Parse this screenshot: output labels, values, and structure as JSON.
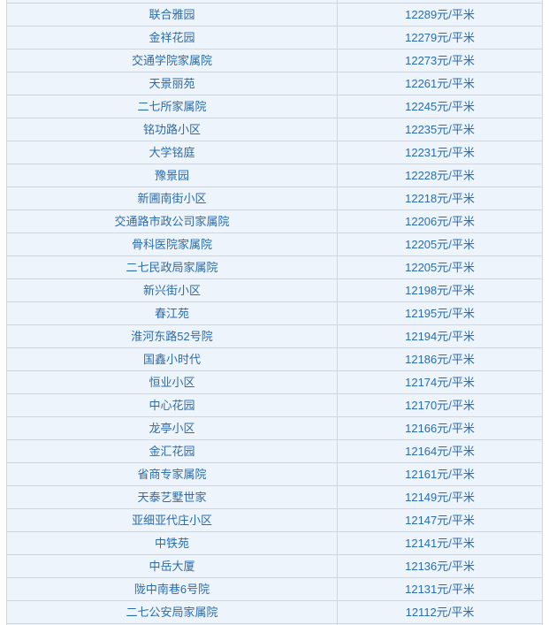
{
  "colors": {
    "page_background": "#ffffff",
    "row_background": "#eef4fc",
    "border": "#c6d9ea",
    "text": "#2a6cab"
  },
  "table": {
    "unit_suffix": "元/平米",
    "rows": [
      {
        "name": "联合雅园",
        "price_value": 12289,
        "price_label": "12289元/平米"
      },
      {
        "name": "金祥花园",
        "price_value": 12279,
        "price_label": "12279元/平米"
      },
      {
        "name": "交通学院家属院",
        "price_value": 12273,
        "price_label": "12273元/平米"
      },
      {
        "name": "天景丽苑",
        "price_value": 12261,
        "price_label": "12261元/平米"
      },
      {
        "name": "二七所家属院",
        "price_value": 12245,
        "price_label": "12245元/平米"
      },
      {
        "name": "铭功路小区",
        "price_value": 12235,
        "price_label": "12235元/平米"
      },
      {
        "name": "大学铭庭",
        "price_value": 12231,
        "price_label": "12231元/平米"
      },
      {
        "name": "豫景园",
        "price_value": 12228,
        "price_label": "12228元/平米"
      },
      {
        "name": "新圃南街小区",
        "price_value": 12218,
        "price_label": "12218元/平米"
      },
      {
        "name": "交通路市政公司家属院",
        "price_value": 12206,
        "price_label": "12206元/平米"
      },
      {
        "name": "骨科医院家属院",
        "price_value": 12205,
        "price_label": "12205元/平米"
      },
      {
        "name": "二七民政局家属院",
        "price_value": 12205,
        "price_label": "12205元/平米"
      },
      {
        "name": "新兴街小区",
        "price_value": 12198,
        "price_label": "12198元/平米"
      },
      {
        "name": "春江苑",
        "price_value": 12195,
        "price_label": "12195元/平米"
      },
      {
        "name": "淮河东路52号院",
        "price_value": 12194,
        "price_label": "12194元/平米"
      },
      {
        "name": "国鑫小时代",
        "price_value": 12186,
        "price_label": "12186元/平米"
      },
      {
        "name": "恒业小区",
        "price_value": 12174,
        "price_label": "12174元/平米"
      },
      {
        "name": "中心花园",
        "price_value": 12170,
        "price_label": "12170元/平米"
      },
      {
        "name": "龙亭小区",
        "price_value": 12166,
        "price_label": "12166元/平米"
      },
      {
        "name": "金汇花园",
        "price_value": 12164,
        "price_label": "12164元/平米"
      },
      {
        "name": "省商专家属院",
        "price_value": 12161,
        "price_label": "12161元/平米"
      },
      {
        "name": "天泰艺墅世家",
        "price_value": 12149,
        "price_label": "12149元/平米"
      },
      {
        "name": "亚细亚代庄小区",
        "price_value": 12147,
        "price_label": "12147元/平米"
      },
      {
        "name": "中铁苑",
        "price_value": 12141,
        "price_label": "12141元/平米"
      },
      {
        "name": "中岳大厦",
        "price_value": 12136,
        "price_label": "12136元/平米"
      },
      {
        "name": "陇中南巷6号院",
        "price_value": 12131,
        "price_label": "12131元/平米"
      },
      {
        "name": "二七公安局家属院",
        "price_value": 12112,
        "price_label": "12112元/平米"
      }
    ]
  }
}
